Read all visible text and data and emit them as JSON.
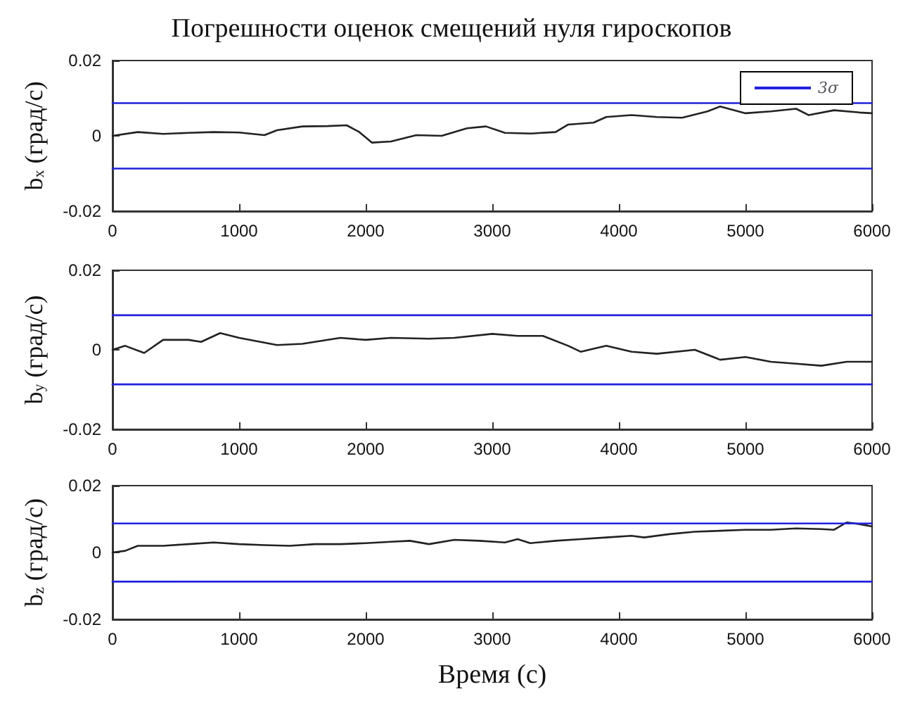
{
  "chart_data": [
    {
      "type": "line",
      "title": "Погрешности оценок смещений нуля гироскопов",
      "ylabel": "b$_{x}$ (град/с)",
      "xlim": [
        0,
        6000
      ],
      "xticks": [
        0,
        1000,
        2000,
        3000,
        4000,
        5000,
        6000
      ],
      "ylim": [
        -0.02,
        0.02
      ],
      "yticks": [
        -0.02,
        0,
        0.02
      ],
      "grid": false,
      "legend": "top right",
      "marker": "none",
      "line_style": "solid",
      "series": [
        {
          "color": "#222222",
          "x": [
            0,
            200,
            400,
            600,
            800,
            1000,
            1200,
            1300,
            1500,
            1700,
            1850,
            1950,
            2050,
            2200,
            2400,
            2600,
            2800,
            2950,
            3100,
            3300,
            3500,
            3600,
            3800,
            3900,
            4100,
            4300,
            4500,
            4700,
            4800,
            5000,
            5200,
            5400,
            5500,
            5700,
            5900,
            6000
          ],
          "values": [
            0,
            0.001,
            0.0005,
            0.0008,
            0.001,
            0.0009,
            0.0002,
            0.0015,
            0.0025,
            0.0026,
            0.0028,
            0.001,
            -0.0018,
            -0.0015,
            0.0002,
            0,
            0.002,
            0.0025,
            0.0008,
            0.0006,
            0.001,
            0.003,
            0.0035,
            0.005,
            0.0055,
            0.005,
            0.0048,
            0.0065,
            0.0078,
            0.006,
            0.0065,
            0.0072,
            0.0055,
            0.0068,
            0.0062,
            0.006
          ]
        },
        {
          "name": "3σ",
          "color": "#2222dd",
          "x": [
            0,
            6000
          ],
          "values": [
            0.0087,
            0.0087
          ]
        },
        {
          "color": "#2222dd",
          "x": [
            0,
            6000
          ],
          "values": [
            -0.0087,
            -0.0087
          ]
        }
      ]
    },
    {
      "type": "line",
      "ylabel": "b$_{y}$ (град/с)",
      "xlim": [
        0,
        6000
      ],
      "xticks": [
        0,
        1000,
        2000,
        3000,
        4000,
        5000,
        6000
      ],
      "ylim": [
        -0.02,
        0.02
      ],
      "yticks": [
        -0.02,
        0,
        0.02
      ],
      "grid": false,
      "marker": "none",
      "line_style": "solid",
      "series": [
        {
          "color": "#222222",
          "x": [
            0,
            100,
            250,
            400,
            600,
            700,
            850,
            1000,
            1300,
            1500,
            1800,
            2000,
            2200,
            2500,
            2700,
            3000,
            3200,
            3400,
            3600,
            3700,
            3900,
            4100,
            4300,
            4600,
            4800,
            5000,
            5200,
            5400,
            5600,
            5800,
            6000
          ],
          "values": [
            0,
            0.001,
            -0.0008,
            0.0025,
            0.0025,
            0.002,
            0.0042,
            0.003,
            0.0012,
            0.0015,
            0.003,
            0.0025,
            0.003,
            0.0028,
            0.003,
            0.004,
            0.0035,
            0.0035,
            0.001,
            -0.0005,
            0.001,
            -0.0005,
            -0.001,
            0,
            -0.0025,
            -0.0018,
            -0.003,
            -0.0035,
            -0.004,
            -0.003,
            -0.003
          ]
        },
        {
          "color": "#2222dd",
          "x": [
            0,
            6000
          ],
          "values": [
            0.0087,
            0.0087
          ]
        },
        {
          "color": "#2222dd",
          "x": [
            0,
            6000
          ],
          "values": [
            -0.0087,
            -0.0087
          ]
        }
      ]
    },
    {
      "type": "line",
      "ylabel": "b$_{z}$ (град/с)",
      "xlabel": "Время (с)",
      "xlim": [
        0,
        6000
      ],
      "xticks": [
        0,
        1000,
        2000,
        3000,
        4000,
        5000,
        6000
      ],
      "ylim": [
        -0.02,
        0.02
      ],
      "yticks": [
        -0.02,
        0,
        0.02
      ],
      "grid": false,
      "marker": "none",
      "line_style": "solid",
      "series": [
        {
          "color": "#222222",
          "x": [
            0,
            100,
            200,
            400,
            600,
            800,
            1000,
            1200,
            1400,
            1600,
            1800,
            2000,
            2200,
            2350,
            2500,
            2700,
            2900,
            3100,
            3200,
            3300,
            3500,
            3700,
            3900,
            4100,
            4200,
            4400,
            4600,
            4800,
            5000,
            5200,
            5400,
            5600,
            5700,
            5800,
            5900,
            6000
          ],
          "values": [
            0,
            0.0005,
            0.002,
            0.002,
            0.0025,
            0.003,
            0.0025,
            0.0022,
            0.002,
            0.0025,
            0.0025,
            0.0028,
            0.0032,
            0.0035,
            0.0025,
            0.0038,
            0.0035,
            0.003,
            0.004,
            0.0028,
            0.0035,
            0.004,
            0.0045,
            0.005,
            0.0045,
            0.0055,
            0.0062,
            0.0065,
            0.0068,
            0.0068,
            0.0072,
            0.007,
            0.0068,
            0.009,
            0.0085,
            0.0078
          ]
        },
        {
          "color": "#2222dd",
          "x": [
            0,
            6000
          ],
          "values": [
            0.0087,
            0.0087
          ]
        },
        {
          "color": "#2222dd",
          "x": [
            0,
            6000
          ],
          "values": [
            -0.0087,
            -0.0087
          ]
        }
      ]
    }
  ]
}
